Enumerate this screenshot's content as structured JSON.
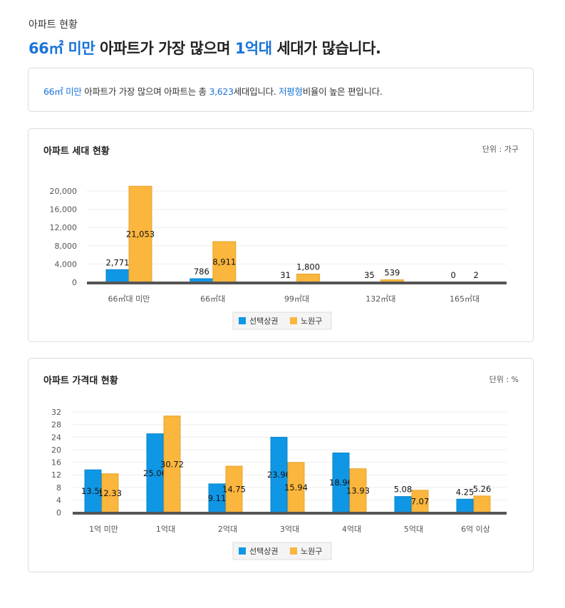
{
  "header": {
    "subtitle": "아파트 현황",
    "headline": {
      "area": "66㎡ 미만",
      "mid": " 아파트가 가장 많으며 ",
      "price": "1억대",
      "end": " 세대가 많습니다."
    }
  },
  "summary": {
    "area": "66㎡ 미만",
    "t1": " 아파트가 가장 많으며 아파트는 총 ",
    "count": "3,623",
    "t2": "세대입니다. ",
    "type": "저평형",
    "t3": "비율이 높은 편입니다."
  },
  "colors": {
    "series1": "#0f97e6",
    "series2": "#fbb63d",
    "axis": "#555555",
    "grid": "#eeeeee"
  },
  "chart_data": [
    {
      "type": "bar",
      "title": "아파트 세대 현황",
      "unit": "단위 : 가구",
      "categories": [
        "66㎡대 미만",
        "66㎡대",
        "99㎡대",
        "132㎡대",
        "165㎡대"
      ],
      "yticks": [
        "0",
        "4,000",
        "8,000",
        "12,000",
        "16,000",
        "20,000"
      ],
      "ylim": [
        0,
        20000
      ],
      "grid": true,
      "legend_position": "bottom",
      "series": [
        {
          "name": "선택상권",
          "values": [
            2771,
            786,
            31,
            35,
            0
          ],
          "labels": [
            "2,771",
            "786",
            "31",
            "35",
            "0"
          ]
        },
        {
          "name": "노원구",
          "values": [
            21053,
            8911,
            1800,
            539,
            2
          ],
          "labels": [
            "21,053",
            "8,911",
            "1,800",
            "539",
            "2"
          ]
        }
      ]
    },
    {
      "type": "bar",
      "title": "아파트 가격대 현황",
      "unit": "단위 : %",
      "categories": [
        "1억 미만",
        "1억대",
        "2억대",
        "3억대",
        "4억대",
        "5억대",
        "6억 이상"
      ],
      "yticks": [
        "0",
        "4",
        "8",
        "12",
        "16",
        "20",
        "24",
        "28",
        "32"
      ],
      "ylim": [
        0,
        32
      ],
      "grid": true,
      "legend_position": "bottom",
      "series": [
        {
          "name": "선택상권",
          "values": [
            13.58,
            25.06,
            9.11,
            23.96,
            18.96,
            5.08,
            4.25
          ],
          "labels": [
            "13.58",
            "25.06",
            "9.11",
            "23.96",
            "18.96",
            "5.08",
            "4.25"
          ]
        },
        {
          "name": "노원구",
          "values": [
            12.33,
            30.72,
            14.75,
            15.94,
            13.93,
            7.07,
            5.26
          ],
          "labels": [
            "12.33",
            "30.72",
            "14.75",
            "15.94",
            "13.93",
            "7.07",
            "5.26"
          ]
        }
      ]
    }
  ]
}
